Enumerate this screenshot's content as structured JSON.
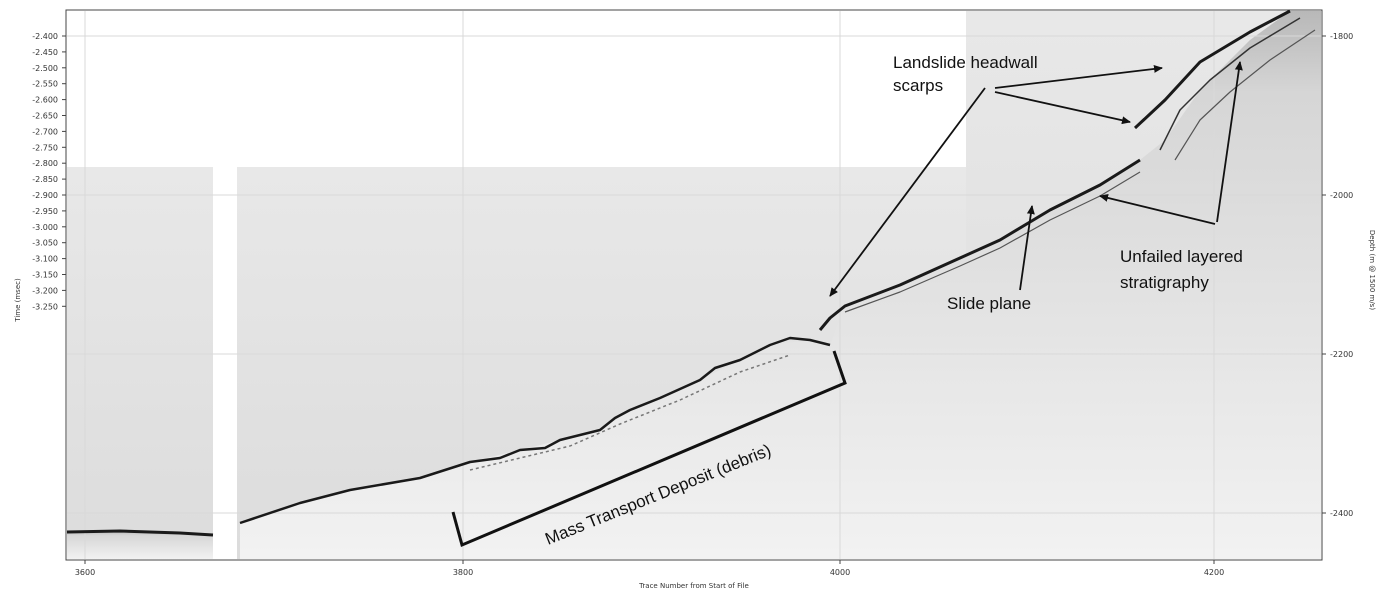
{
  "axes": {
    "left_title": "Time (msec)",
    "right_title": "Depth (m @ 1500 m/s)",
    "bottom_title": "Trace Number from Start of File",
    "left_ticks": [
      "-2.400",
      "-2.450",
      "-2.500",
      "-2.550",
      "-2.600",
      "-2.650",
      "-2.700",
      "-2.750",
      "-2.800",
      "-2.850",
      "-2.900",
      "-2.950",
      "-3.000",
      "-3.050",
      "-3.100",
      "-3.150",
      "-3.200",
      "-3.250"
    ],
    "right_ticks": [
      "-1800",
      "-2000",
      "-2200",
      "-2400"
    ],
    "bottom_ticks": [
      "3600",
      "3800",
      "4000",
      "4200"
    ]
  },
  "annotations": {
    "headwall_line1": "Landslide headwall",
    "headwall_line2": "scarps",
    "unfailed_line1": "Unfailed layered",
    "unfailed_line2": "stratigraphy",
    "slide_plane": "Slide plane",
    "mass_transport": "Mass Transport Deposit (debris)"
  },
  "colors": {
    "frame": "#444444",
    "grid": "#d9d9d9",
    "reflector": "#1a1a1a",
    "background_wash": "#e6e6e6"
  }
}
